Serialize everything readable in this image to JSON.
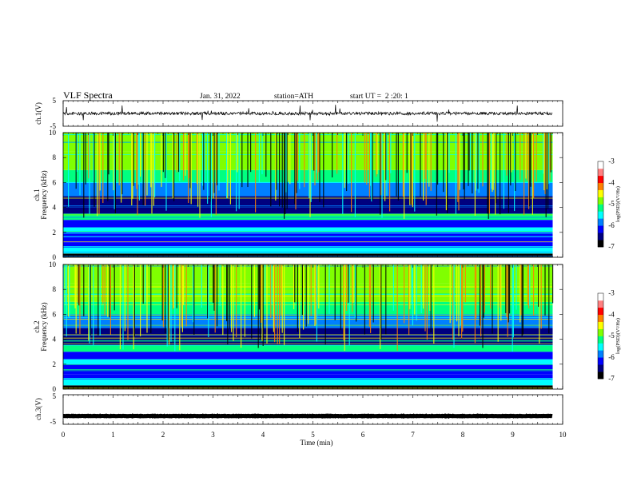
{
  "header": {
    "title": "VLF Spectra",
    "date": "Jan. 31, 2022",
    "station": "station=ATH",
    "start": "start UT =  2 :20: 1"
  },
  "chart_data": [
    {
      "type": "line",
      "name": "ch1-waveform",
      "ylabel": "ch.1(V)",
      "ylim": [
        -5,
        5
      ],
      "yticks": [
        "5",
        "-5"
      ],
      "xlim": [
        0,
        10
      ],
      "data_end_min": 9.8,
      "level": 0,
      "noise_amplitude": 1.2
    },
    {
      "type": "heatmap",
      "name": "ch1-spectrogram",
      "ylabel_top": "ch.1",
      "ylabel": "Frequency (kHz)",
      "ylim": [
        0,
        10
      ],
      "yticks": [
        "0",
        "2",
        "4",
        "6",
        "8",
        "10"
      ],
      "xlim": [
        0,
        10
      ],
      "data_end_min": 9.8,
      "colorbar": {
        "label": "log(PSD)(V²/Hz)",
        "range": [
          -7,
          -3
        ],
        "ticks": [
          "-3",
          "-4",
          "-5",
          "-6",
          "-7"
        ]
      }
    },
    {
      "type": "heatmap",
      "name": "ch2-spectrogram",
      "ylabel_top": "ch.2",
      "ylabel": "Frequency (kHz)",
      "ylim": [
        0,
        10
      ],
      "yticks": [
        "0",
        "2",
        "4",
        "6",
        "8",
        "10"
      ],
      "xlim": [
        0,
        10
      ],
      "data_end_min": 9.8,
      "colorbar": {
        "label": "log(PSD)(V²/Hz)",
        "range": [
          -7,
          -3
        ],
        "ticks": [
          "-3",
          "-4",
          "-5",
          "-6",
          "-7"
        ]
      }
    },
    {
      "type": "line",
      "name": "ch3-waveform",
      "ylabel": "ch.3(V)",
      "ylim": [
        -5,
        5
      ],
      "yticks": [
        "5",
        "-5"
      ],
      "xlim": [
        0,
        10
      ],
      "data_end_min": 9.8,
      "level": -2.2,
      "noise_amplitude": 0.15
    }
  ],
  "x_axis": {
    "label": "Time (min)",
    "ticks": [
      "0",
      "1",
      "2",
      "3",
      "4",
      "5",
      "6",
      "7",
      "8",
      "9",
      "10"
    ]
  },
  "colormap": [
    "#000000",
    "#00007f",
    "#0000ff",
    "#0080ff",
    "#00ffff",
    "#00ff80",
    "#80ff00",
    "#ffff00",
    "#ff8000",
    "#ff0000",
    "#ff8080",
    "#ffffff"
  ]
}
